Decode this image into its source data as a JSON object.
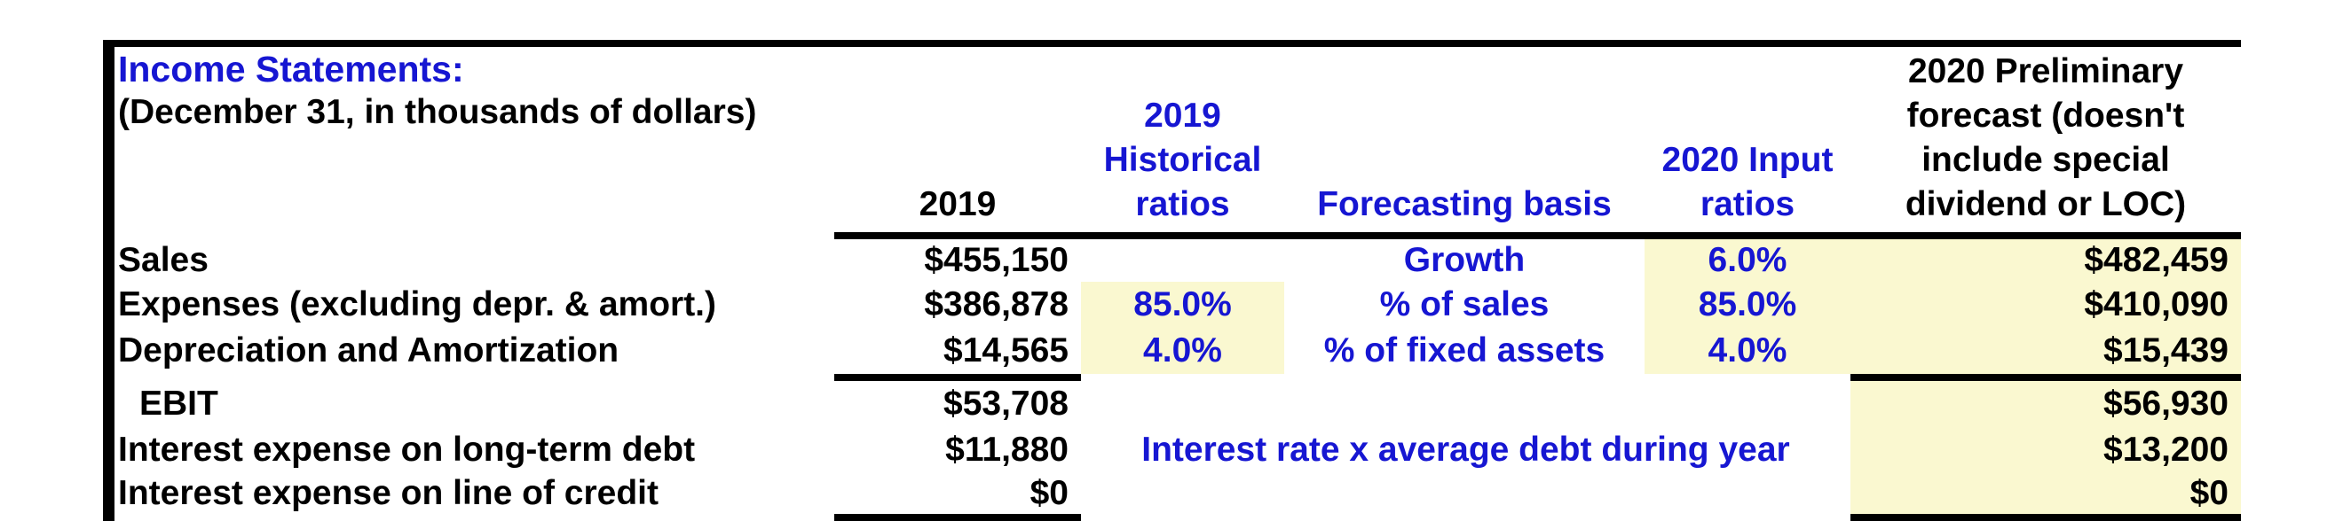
{
  "title": "Income Statements:",
  "subtitle": "(December 31, in thousands of dollars)",
  "columns": {
    "y2019": "2019",
    "hist": [
      "2019",
      "Historical",
      "ratios"
    ],
    "basis": "Forecasting basis",
    "input": [
      "2020 Input",
      "ratios"
    ],
    "forecast": [
      "2020 Preliminary",
      "forecast (doesn't",
      "include special",
      "dividend or LOC)"
    ]
  },
  "rows": [
    {
      "label": "Sales",
      "y2019": "$455,150",
      "hist": "",
      "basis": "Growth",
      "input": "6.0%",
      "forecast": "$482,459"
    },
    {
      "label": "Expenses (excluding depr. & amort.)",
      "y2019": "$386,878",
      "hist": "85.0%",
      "basis": "% of sales",
      "input": "85.0%",
      "forecast": "$410,090"
    },
    {
      "label": "Depreciation and Amortization",
      "y2019": "$14,565",
      "hist": "4.0%",
      "basis": "% of fixed assets",
      "input": "4.0%",
      "forecast": "$15,439"
    },
    {
      "label": "EBIT",
      "y2019": "$53,708",
      "forecast": "$56,930"
    },
    {
      "label": "Interest expense on long-term debt",
      "y2019": "$11,880",
      "note": "Interest rate x average debt during year",
      "forecast": "$13,200"
    },
    {
      "label": "Interest expense on line of credit",
      "y2019": "$0",
      "forecast": "$0"
    }
  ],
  "colors": {
    "accent_blue": "#1616d2",
    "highlight_yellow": "#faf8d0",
    "border_black": "#000000"
  }
}
